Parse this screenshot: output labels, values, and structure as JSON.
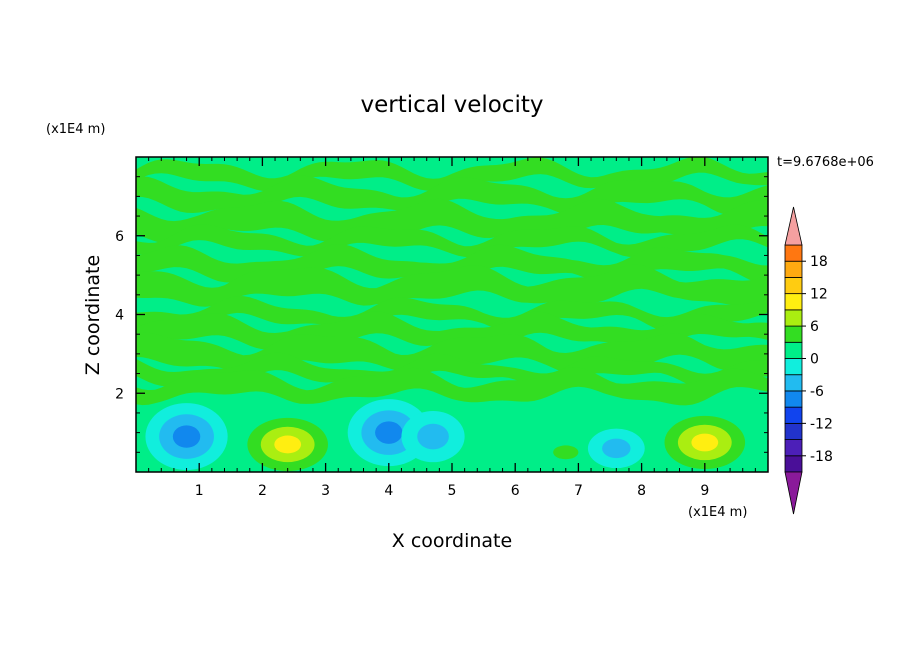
{
  "chart_data": {
    "type": "heatmap",
    "title": "vertical velocity",
    "xlabel": "X coordinate",
    "ylabel": "Z coordinate",
    "x_unit": "(x1E4 m)",
    "y_unit": "(x1E4 m)",
    "time_label": "t=9.6768e+06",
    "xlim": [
      0,
      10
    ],
    "ylim": [
      0,
      8
    ],
    "x_ticks": [
      "1",
      "2",
      "3",
      "4",
      "5",
      "6",
      "7",
      "8",
      "9"
    ],
    "y_ticks": [
      "2",
      "4",
      "6"
    ],
    "x_tick_values": [
      1,
      2,
      3,
      4,
      5,
      6,
      7,
      8,
      9
    ],
    "y_tick_values": [
      2,
      4,
      6
    ],
    "grid": false,
    "background_level_color": "#00ee88",
    "band_color": "#33dd22",
    "band_y_values": [
      7.55,
      7.0,
      6.35,
      5.85,
      5.25,
      4.7,
      4.0,
      3.55,
      3.0,
      2.55,
      2.15
    ],
    "colorbar": {
      "levels": [
        -21,
        -18,
        -15,
        -12,
        -9,
        -6,
        -3,
        0,
        3,
        6,
        9,
        12,
        15,
        18,
        21
      ],
      "labels": [
        "18",
        "12",
        "6",
        "0",
        "-6",
        "-12",
        "-18"
      ],
      "label_values": [
        18,
        12,
        6,
        0,
        -6,
        -12,
        -18
      ],
      "colors": [
        "#4a0f98",
        "#4c1fb8",
        "#2233cc",
        "#1144ee",
        "#1188ee",
        "#22bbf0",
        "#11eedd",
        "#00ee88",
        "#33dd22",
        "#aaee11",
        "#ffee11",
        "#ffcc11",
        "#ffaa11",
        "#ff7711",
        "#ff3311",
        "#ee1111"
      ],
      "under_color": "#8a1a9a",
      "over_color": "#f5a0a0"
    },
    "features": [
      {
        "kind": "updraft",
        "center": [
          2.4,
          0.7
        ],
        "radii": [
          0.85,
          0.9
        ],
        "peak": 9
      },
      {
        "kind": "updraft",
        "center": [
          9.0,
          0.75
        ],
        "radii": [
          0.85,
          0.9
        ],
        "peak": 9
      },
      {
        "kind": "updraft",
        "center": [
          6.8,
          0.5
        ],
        "radii": [
          0.4,
          0.35
        ],
        "peak": 3
      },
      {
        "kind": "downdraft",
        "center": [
          0.8,
          0.9
        ],
        "radii": [
          0.65,
          0.85
        ],
        "peak": -6
      },
      {
        "kind": "downdraft",
        "center": [
          4.0,
          1.0
        ],
        "radii": [
          0.65,
          0.85
        ],
        "peak": -6
      },
      {
        "kind": "downdraft",
        "center": [
          4.7,
          0.9
        ],
        "radii": [
          0.5,
          0.65
        ],
        "peak": -3
      },
      {
        "kind": "downdraft",
        "center": [
          7.6,
          0.6
        ],
        "radii": [
          0.45,
          0.5
        ],
        "peak": -3
      }
    ]
  }
}
